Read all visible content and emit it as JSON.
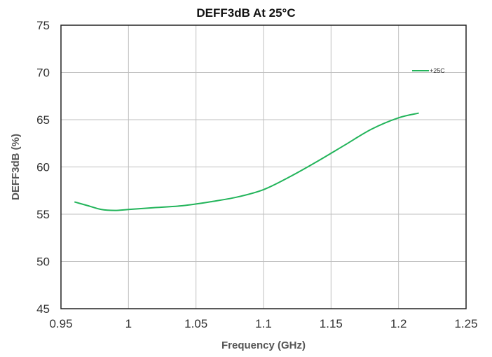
{
  "chart_data": {
    "type": "line",
    "title": "DEFF3dB At 25°C",
    "xlabel": "Frequency (GHz)",
    "ylabel": "DEFF3dB (%)",
    "xlim": [
      0.95,
      1.25
    ],
    "ylim": [
      45,
      75
    ],
    "xticks": [
      "0.95",
      "1",
      "1.05",
      "1.1",
      "1.15",
      "1.2",
      "1.25"
    ],
    "yticks": [
      "45",
      "50",
      "55",
      "60",
      "65",
      "70",
      "75"
    ],
    "grid": true,
    "legend_position": "top-right",
    "series": [
      {
        "name": "+25C",
        "color": "#22b45a",
        "x": [
          0.96,
          0.97,
          0.98,
          0.99,
          1.0,
          1.02,
          1.04,
          1.06,
          1.08,
          1.1,
          1.12,
          1.14,
          1.16,
          1.18,
          1.2,
          1.215
        ],
        "y": [
          56.3,
          55.9,
          55.5,
          55.4,
          55.5,
          55.7,
          55.9,
          56.3,
          56.8,
          57.6,
          59.0,
          60.6,
          62.3,
          64.0,
          65.2,
          65.7
        ]
      }
    ]
  }
}
